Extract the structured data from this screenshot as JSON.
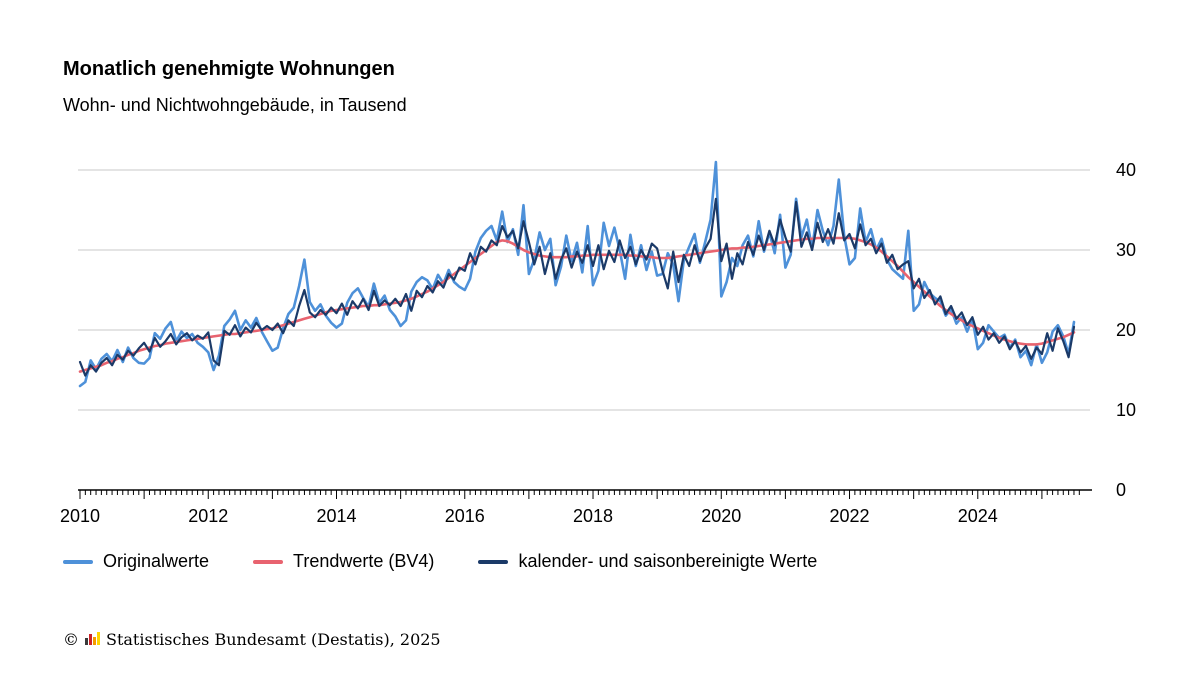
{
  "title": "Monatlich genehmigte Wohnungen",
  "subtitle": "Wohn- und Nichtwohngebäude, in Tausend",
  "legend": [
    {
      "label": "Originalwerte",
      "color": "#4e91d9"
    },
    {
      "label": "Trendwerte (BV4)",
      "color": "#e8636f"
    },
    {
      "label": "kalender- und saisonbereinigte Werte",
      "color": "#1b3a68"
    }
  ],
  "footer": {
    "copyright": "©",
    "source": "Statistisches Bundesamt (Destatis), 2025"
  },
  "chart_data": {
    "type": "line",
    "title": "Monatlich genehmigte Wohnungen",
    "subtitle": "Wohn- und Nichtwohngebäude, in Tausend",
    "x_start_year": 2010,
    "x_frequency": "monthly",
    "x_end": 2025.58,
    "x_tick_labels": [
      "2010",
      "2012",
      "2014",
      "2016",
      "2018",
      "2020",
      "2022",
      "2024"
    ],
    "ylim": [
      0,
      40
    ],
    "yticks": [
      0,
      10,
      20,
      30,
      40
    ],
    "grid": "horizontal",
    "legend_position": "bottom",
    "series": [
      {
        "name": "Originalwerte",
        "color": "#4e91d9",
        "width": 2.6,
        "values": [
          13.0,
          13.5,
          16.2,
          15.1,
          16.4,
          17.0,
          16.1,
          17.5,
          16.0,
          17.8,
          16.5,
          15.9,
          15.8,
          16.5,
          19.6,
          18.9,
          20.2,
          21.0,
          18.6,
          19.8,
          19.0,
          19.5,
          18.4,
          17.9,
          17.2,
          15.0,
          16.8,
          20.5,
          21.3,
          22.4,
          20.0,
          21.2,
          20.3,
          21.5,
          19.8,
          18.6,
          17.4,
          17.8,
          20.2,
          22.0,
          22.8,
          25.5,
          28.8,
          23.5,
          22.4,
          23.2,
          21.8,
          20.9,
          20.3,
          20.8,
          23.4,
          24.6,
          25.2,
          24.0,
          22.9,
          25.8,
          23.4,
          24.3,
          22.5,
          21.7,
          20.5,
          21.2,
          24.8,
          26.0,
          26.6,
          26.2,
          25.1,
          26.9,
          25.8,
          27.5,
          26.0,
          25.4,
          25.0,
          26.4,
          29.8,
          31.5,
          32.4,
          33.0,
          31.2,
          34.8,
          31.0,
          32.6,
          29.4,
          35.6,
          27.0,
          28.8,
          32.2,
          30.0,
          31.4,
          25.6,
          27.9,
          31.8,
          28.6,
          30.9,
          27.2,
          33.0,
          25.6,
          27.4,
          33.4,
          30.5,
          32.8,
          30.0,
          26.4,
          31.9,
          28.0,
          30.6,
          27.5,
          29.8,
          26.8,
          27.0,
          29.6,
          28.2,
          23.6,
          28.8,
          30.4,
          32.0,
          28.4,
          31.0,
          33.8,
          41.0,
          24.2,
          26.0,
          29.0,
          28.0,
          30.6,
          31.8,
          29.2,
          33.6,
          29.8,
          32.2,
          29.6,
          34.4,
          27.8,
          29.4,
          36.4,
          31.6,
          33.8,
          30.2,
          35.0,
          32.4,
          30.6,
          33.0,
          38.8,
          31.8,
          28.2,
          29.0,
          35.2,
          31.0,
          32.6,
          30.0,
          31.4,
          28.8,
          27.6,
          27.0,
          26.4,
          32.4,
          22.4,
          23.2,
          26.0,
          24.6,
          24.0,
          23.6,
          21.8,
          22.6,
          20.8,
          21.6,
          19.8,
          21.4,
          17.6,
          18.4,
          20.6,
          19.8,
          19.0,
          19.4,
          17.8,
          18.8,
          16.6,
          17.4,
          15.6,
          18.2,
          15.9,
          17.2,
          19.8,
          20.6,
          19.2,
          17.0,
          21.0
        ]
      },
      {
        "name": "Trendwerte (BV4)",
        "color": "#e8636f",
        "width": 2.6,
        "values": [
          14.8,
          15.0,
          15.2,
          15.4,
          15.6,
          15.9,
          16.1,
          16.4,
          16.6,
          16.9,
          17.1,
          17.4,
          17.6,
          17.8,
          18.0,
          18.1,
          18.3,
          18.4,
          18.5,
          18.6,
          18.7,
          18.8,
          18.9,
          19.0,
          19.1,
          19.2,
          19.3,
          19.4,
          19.5,
          19.5,
          19.6,
          19.7,
          19.8,
          19.9,
          20.0,
          20.1,
          20.2,
          20.4,
          20.6,
          20.8,
          21.0,
          21.2,
          21.4,
          21.6,
          21.8,
          22.0,
          22.2,
          22.4,
          22.5,
          22.6,
          22.7,
          22.8,
          22.9,
          23.0,
          23.0,
          23.1,
          23.1,
          23.2,
          23.3,
          23.4,
          23.5,
          23.7,
          23.9,
          24.2,
          24.5,
          24.8,
          25.2,
          25.6,
          26.0,
          26.5,
          27.0,
          27.5,
          28.0,
          28.5,
          29.0,
          29.5,
          30.0,
          30.5,
          31.0,
          31.2,
          31.1,
          30.8,
          30.4,
          30.0,
          29.7,
          29.5,
          29.3,
          29.2,
          29.1,
          29.1,
          29.1,
          29.1,
          29.2,
          29.2,
          29.3,
          29.3,
          29.4,
          29.4,
          29.4,
          29.4,
          29.4,
          29.4,
          29.4,
          29.3,
          29.3,
          29.2,
          29.2,
          29.1,
          29.0,
          29.0,
          29.0,
          29.1,
          29.2,
          29.3,
          29.4,
          29.5,
          29.6,
          29.7,
          29.8,
          29.9,
          30.0,
          30.1,
          30.2,
          30.2,
          30.3,
          30.3,
          30.4,
          30.5,
          30.6,
          30.7,
          30.8,
          30.9,
          31.0,
          31.1,
          31.2,
          31.3,
          31.4,
          31.4,
          31.5,
          31.5,
          31.5,
          31.5,
          31.5,
          31.5,
          31.5,
          31.4,
          31.2,
          31.0,
          30.7,
          30.3,
          29.8,
          29.2,
          28.6,
          28.0,
          27.3,
          26.6,
          26.0,
          25.4,
          24.8,
          24.2,
          23.6,
          23.0,
          22.5,
          22.0,
          21.6,
          21.2,
          20.8,
          20.5,
          20.2,
          19.9,
          19.6,
          19.3,
          19.0,
          18.8,
          18.6,
          18.4,
          18.3,
          18.2,
          18.2,
          18.2,
          18.3,
          18.5,
          18.7,
          18.9,
          19.1,
          19.4,
          19.7
        ]
      },
      {
        "name": "kalender- und saisonbereinigte Werte",
        "color": "#1b3a68",
        "width": 2.2,
        "values": [
          16.0,
          14.3,
          15.6,
          14.8,
          15.9,
          16.5,
          15.6,
          16.9,
          16.3,
          17.4,
          16.8,
          17.7,
          18.4,
          17.3,
          19.0,
          17.9,
          18.6,
          19.5,
          18.2,
          19.1,
          19.6,
          18.7,
          19.3,
          18.9,
          19.7,
          16.2,
          15.6,
          19.9,
          19.4,
          20.6,
          19.2,
          20.3,
          19.7,
          20.9,
          20.0,
          20.5,
          20.0,
          20.8,
          19.6,
          21.2,
          20.5,
          23.0,
          25.0,
          22.2,
          21.6,
          22.5,
          21.9,
          22.8,
          22.1,
          23.3,
          21.9,
          23.6,
          22.7,
          23.9,
          22.5,
          24.9,
          23.0,
          23.7,
          23.1,
          23.9,
          23.0,
          24.5,
          22.4,
          24.9,
          24.1,
          25.5,
          24.7,
          26.1,
          25.3,
          27.0,
          26.3,
          27.8,
          27.4,
          29.6,
          28.2,
          30.4,
          29.8,
          31.2,
          30.6,
          33.0,
          31.6,
          32.4,
          30.2,
          33.6,
          31.0,
          28.2,
          30.4,
          27.0,
          29.6,
          26.4,
          28.8,
          30.2,
          27.8,
          29.8,
          28.4,
          30.6,
          28.0,
          30.6,
          27.6,
          29.9,
          28.5,
          31.2,
          29.0,
          30.4,
          28.2,
          30.0,
          28.8,
          30.8,
          30.2,
          27.4,
          25.2,
          29.8,
          26.0,
          29.4,
          28.0,
          30.6,
          28.6,
          30.2,
          31.4,
          36.4,
          28.6,
          30.8,
          26.4,
          29.6,
          28.2,
          31.0,
          29.4,
          31.8,
          30.0,
          32.4,
          30.6,
          33.8,
          31.6,
          29.8,
          36.0,
          30.4,
          32.2,
          30.0,
          33.4,
          31.0,
          32.6,
          30.8,
          34.6,
          31.2,
          32.0,
          30.2,
          33.2,
          30.6,
          31.4,
          29.6,
          30.8,
          28.4,
          29.4,
          27.6,
          28.2,
          28.6,
          25.2,
          26.4,
          24.0,
          25.0,
          23.2,
          24.2,
          22.0,
          23.0,
          21.4,
          22.2,
          20.6,
          21.6,
          19.4,
          20.4,
          18.8,
          19.6,
          18.4,
          19.2,
          17.6,
          18.6,
          17.2,
          18.0,
          16.4,
          17.8,
          17.0,
          19.6,
          17.4,
          20.2,
          18.6,
          16.6,
          20.4
        ]
      }
    ]
  }
}
